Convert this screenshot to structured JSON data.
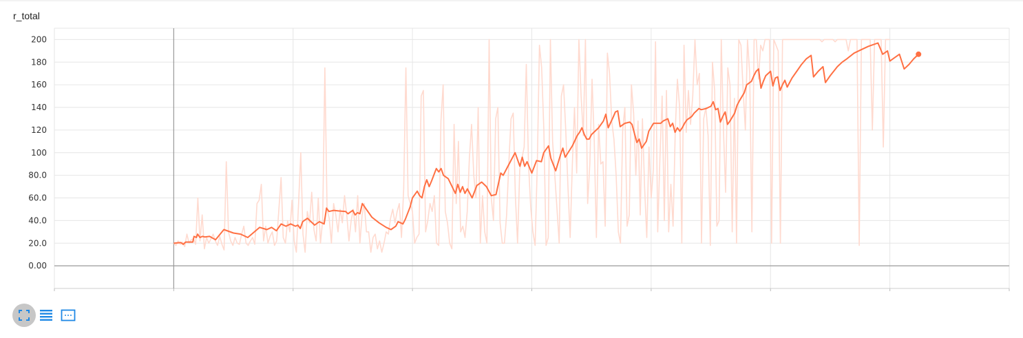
{
  "chart_title": "r_total",
  "toolbar": {
    "buttons": [
      {
        "name": "fit-to-data-button",
        "icon": "expand-corners-icon",
        "active": true
      },
      {
        "name": "toggle-log-scale-button",
        "icon": "lines-list-icon",
        "active": false
      },
      {
        "name": "toggle-y-axis-range-button",
        "icon": "dashed-frame-icon",
        "active": false
      }
    ]
  },
  "colors": {
    "smoothed": "#ff7043",
    "raw": "#ffdacf",
    "grid": "#e6e6e6",
    "axis": "#999999",
    "accent_icon": "#1e88e5"
  },
  "chart_data": {
    "type": "line",
    "title": "r_total",
    "xlabel": "",
    "ylabel": "",
    "ylim": [
      -20,
      210
    ],
    "y_ticks": [
      "0.00",
      "20.0",
      "40.0",
      "60.0",
      "80.0",
      "100",
      "120",
      "140",
      "160",
      "180",
      "200"
    ],
    "x_tick_labels_visible": false,
    "x_range": [
      -1,
      7
    ],
    "x_gridlines": [
      -1,
      0,
      1,
      2,
      3,
      4,
      5,
      6,
      7
    ],
    "grid": true,
    "legend": "none",
    "series": [
      {
        "role": "raw",
        "x_start": 0,
        "x_end": 6.0,
        "values": [
          20,
          18,
          22,
          19,
          21,
          17,
          28,
          20,
          23,
          24,
          19,
          60,
          22,
          45,
          15,
          25,
          20,
          24,
          28,
          22,
          18,
          26,
          19,
          14,
          92,
          30,
          22,
          18,
          25,
          20,
          19,
          28,
          35,
          20,
          18,
          22,
          25,
          19,
          55,
          58,
          72,
          22,
          35,
          20,
          26,
          30,
          18,
          22,
          50,
          78,
          25,
          20,
          40,
          30,
          58,
          22,
          12,
          55,
          100,
          28,
          12,
          48,
          38,
          65,
          32,
          22,
          60,
          20,
          40,
          175,
          50,
          42,
          20,
          55,
          45,
          30,
          50,
          38,
          62,
          45,
          22,
          40,
          50,
          30,
          62,
          20,
          45,
          55,
          30,
          30,
          12,
          25,
          28,
          15,
          22,
          12,
          20,
          30,
          28,
          42,
          50,
          38,
          48,
          55,
          25,
          68,
          175,
          62,
          55,
          48,
          20,
          25,
          28,
          150,
          155,
          30,
          40,
          55,
          48,
          62,
          20,
          18,
          128,
          160,
          48,
          38,
          20,
          15,
          125,
          55,
          110,
          30,
          35,
          25,
          48,
          95,
          125,
          80,
          60,
          140,
          20,
          62,
          30,
          20,
          200,
          60,
          40,
          130,
          140,
          38,
          20,
          20,
          45,
          90,
          130,
          135,
          62,
          20,
          85,
          95,
          105,
          178,
          90,
          52,
          30,
          18,
          90,
          195,
          175,
          120,
          18,
          25,
          200,
          110,
          80,
          50,
          20,
          150,
          160,
          120,
          70,
          25,
          90,
          140,
          82,
          200,
          150,
          115,
          200,
          55,
          90,
          165,
          110,
          25,
          125,
          90,
          92,
          35,
          188,
          170,
          128,
          112,
          80,
          30,
          20,
          120,
          140,
          35,
          45,
          160,
          135,
          80,
          128,
          45,
          130,
          70,
          25,
          105,
          60,
          85,
          198,
          30,
          95,
          150,
          40,
          155,
          30,
          72,
          35,
          120,
          165,
          140,
          20,
          195,
          118,
          155,
          125,
          150,
          200,
          160,
          170,
          20,
          130,
          140,
          115,
          18,
          180,
          155,
          35,
          40,
          200,
          120,
          65,
          175,
          160,
          30,
          148,
          20,
          200,
          195,
          155,
          120,
          200,
          170,
          30,
          200,
          200,
          165,
          195,
          190,
          200,
          200,
          200,
          20,
          200,
          195,
          190,
          20,
          200,
          200,
          200,
          200,
          200,
          200,
          200,
          200,
          200,
          200,
          200,
          200,
          200,
          200,
          200,
          200,
          200,
          200,
          198,
          200,
          200,
          200,
          200,
          200,
          198,
          200,
          200,
          200,
          200,
          200,
          190,
          200,
          200,
          200,
          200,
          18,
          200,
          200,
          200,
          200,
          200,
          120,
          200,
          200,
          200,
          200,
          105,
          200,
          200,
          200
        ]
      },
      {
        "role": "smoothed",
        "points": [
          [
            0,
            20
          ],
          [
            0.06,
            20.5
          ],
          [
            0.08,
            19
          ],
          [
            0.1,
            21
          ],
          [
            0.16,
            21
          ],
          [
            0.17,
            26
          ],
          [
            0.19,
            25
          ],
          [
            0.2,
            28
          ],
          [
            0.22,
            25
          ],
          [
            0.24,
            26
          ],
          [
            0.26,
            25.5
          ],
          [
            0.3,
            26
          ],
          [
            0.35,
            23
          ],
          [
            0.42,
            32
          ],
          [
            0.5,
            29
          ],
          [
            0.56,
            28
          ],
          [
            0.62,
            25
          ],
          [
            0.72,
            34
          ],
          [
            0.78,
            32
          ],
          [
            0.82,
            34
          ],
          [
            0.86,
            31
          ],
          [
            0.9,
            37
          ],
          [
            0.94,
            35
          ],
          [
            0.98,
            37
          ],
          [
            1.02,
            35
          ],
          [
            1.04,
            36
          ],
          [
            1.06,
            33
          ],
          [
            1.08,
            39
          ],
          [
            1.12,
            42
          ],
          [
            1.18,
            36
          ],
          [
            1.22,
            39
          ],
          [
            1.26,
            37
          ],
          [
            1.28,
            51
          ],
          [
            1.3,
            48
          ],
          [
            1.34,
            49
          ],
          [
            1.38,
            48.5
          ],
          [
            1.44,
            48
          ],
          [
            1.46,
            46
          ],
          [
            1.5,
            49
          ],
          [
            1.52,
            45
          ],
          [
            1.54,
            47
          ],
          [
            1.56,
            46
          ],
          [
            1.58,
            55
          ],
          [
            1.62,
            49
          ],
          [
            1.66,
            43
          ],
          [
            1.72,
            38
          ],
          [
            1.78,
            34
          ],
          [
            1.82,
            32
          ],
          [
            1.86,
            35
          ],
          [
            1.88,
            39
          ],
          [
            1.92,
            37
          ],
          [
            1.94,
            41
          ],
          [
            1.98,
            52
          ],
          [
            2.0,
            60
          ],
          [
            2.04,
            66
          ],
          [
            2.06,
            62
          ],
          [
            2.08,
            60
          ],
          [
            2.1,
            70
          ],
          [
            2.12,
            76
          ],
          [
            2.14,
            70
          ],
          [
            2.16,
            75
          ],
          [
            2.2,
            86
          ],
          [
            2.22,
            83
          ],
          [
            2.24,
            86
          ],
          [
            2.26,
            80
          ],
          [
            2.3,
            77
          ],
          [
            2.36,
            64
          ],
          [
            2.38,
            72
          ],
          [
            2.4,
            65
          ],
          [
            2.42,
            70
          ],
          [
            2.44,
            64
          ],
          [
            2.46,
            68
          ],
          [
            2.5,
            60
          ],
          [
            2.54,
            71
          ],
          [
            2.58,
            74
          ],
          [
            2.62,
            70
          ],
          [
            2.66,
            62
          ],
          [
            2.7,
            63
          ],
          [
            2.74,
            82
          ],
          [
            2.76,
            80
          ],
          [
            2.8,
            88
          ],
          [
            2.86,
            100
          ],
          [
            2.9,
            88
          ],
          [
            2.92,
            96
          ],
          [
            2.94,
            88
          ],
          [
            2.96,
            92
          ],
          [
            3.0,
            82
          ],
          [
            3.04,
            93
          ],
          [
            3.08,
            92
          ],
          [
            3.1,
            100
          ],
          [
            3.14,
            106
          ],
          [
            3.16,
            95
          ],
          [
            3.2,
            84
          ],
          [
            3.24,
            98
          ],
          [
            3.26,
            104
          ],
          [
            3.28,
            96
          ],
          [
            3.34,
            106
          ],
          [
            3.38,
            115
          ],
          [
            3.4,
            118
          ],
          [
            3.42,
            122
          ],
          [
            3.44,
            116
          ],
          [
            3.46,
            112
          ],
          [
            3.48,
            112
          ],
          [
            3.5,
            116
          ],
          [
            3.54,
            120
          ],
          [
            3.56,
            122
          ],
          [
            3.6,
            128
          ],
          [
            3.62,
            134
          ],
          [
            3.64,
            122
          ],
          [
            3.68,
            131
          ],
          [
            3.7,
            136
          ],
          [
            3.72,
            137
          ],
          [
            3.74,
            123
          ],
          [
            3.78,
            126
          ],
          [
            3.82,
            127
          ],
          [
            3.84,
            125
          ],
          [
            3.88,
            109
          ],
          [
            3.9,
            112
          ],
          [
            3.92,
            104
          ],
          [
            3.96,
            110
          ],
          [
            3.98,
            119
          ],
          [
            4.02,
            126
          ],
          [
            4.06,
            126
          ],
          [
            4.08,
            126
          ],
          [
            4.1,
            128
          ],
          [
            4.14,
            130
          ],
          [
            4.16,
            123
          ],
          [
            4.18,
            126
          ],
          [
            4.2,
            118
          ],
          [
            4.22,
            122
          ],
          [
            4.24,
            119
          ],
          [
            4.26,
            122
          ],
          [
            4.28,
            126
          ],
          [
            4.3,
            129
          ],
          [
            4.34,
            132
          ],
          [
            4.36,
            135
          ],
          [
            4.38,
            137
          ],
          [
            4.4,
            139
          ],
          [
            4.42,
            138
          ],
          [
            4.46,
            139
          ],
          [
            4.5,
            141
          ],
          [
            4.52,
            145
          ],
          [
            4.54,
            138
          ],
          [
            4.56,
            139
          ],
          [
            4.58,
            127
          ],
          [
            4.6,
            132
          ],
          [
            4.62,
            136
          ],
          [
            4.64,
            125
          ],
          [
            4.66,
            128
          ],
          [
            4.7,
            135
          ],
          [
            4.72,
            142
          ],
          [
            4.74,
            146
          ],
          [
            4.78,
            153
          ],
          [
            4.8,
            160
          ],
          [
            4.84,
            163
          ],
          [
            4.86,
            168
          ],
          [
            4.88,
            172
          ],
          [
            4.9,
            174
          ],
          [
            4.92,
            157
          ],
          [
            4.94,
            163
          ],
          [
            4.96,
            168
          ],
          [
            5.0,
            172
          ],
          [
            5.02,
            159
          ],
          [
            5.04,
            166
          ],
          [
            5.06,
            167
          ],
          [
            5.08,
            155
          ],
          [
            5.1,
            160
          ],
          [
            5.12,
            164
          ],
          [
            5.14,
            158
          ],
          [
            5.18,
            166
          ],
          [
            5.22,
            172
          ],
          [
            5.26,
            178
          ],
          [
            5.3,
            183
          ],
          [
            5.34,
            186
          ],
          [
            5.36,
            167
          ],
          [
            5.4,
            172
          ],
          [
            5.44,
            176
          ],
          [
            5.46,
            162
          ],
          [
            5.5,
            168
          ],
          [
            5.56,
            176
          ],
          [
            5.6,
            180
          ],
          [
            5.64,
            183
          ],
          [
            5.7,
            188
          ],
          [
            5.76,
            191
          ],
          [
            5.82,
            194
          ],
          [
            5.9,
            197
          ],
          [
            5.94,
            187
          ],
          [
            5.98,
            190
          ],
          [
            6.0,
            181
          ],
          [
            6.04,
            184
          ],
          [
            6.08,
            187
          ],
          [
            6.12,
            174
          ],
          [
            6.16,
            178
          ],
          [
            6.2,
            183
          ],
          [
            6.24,
            187
          ]
        ]
      }
    ]
  }
}
